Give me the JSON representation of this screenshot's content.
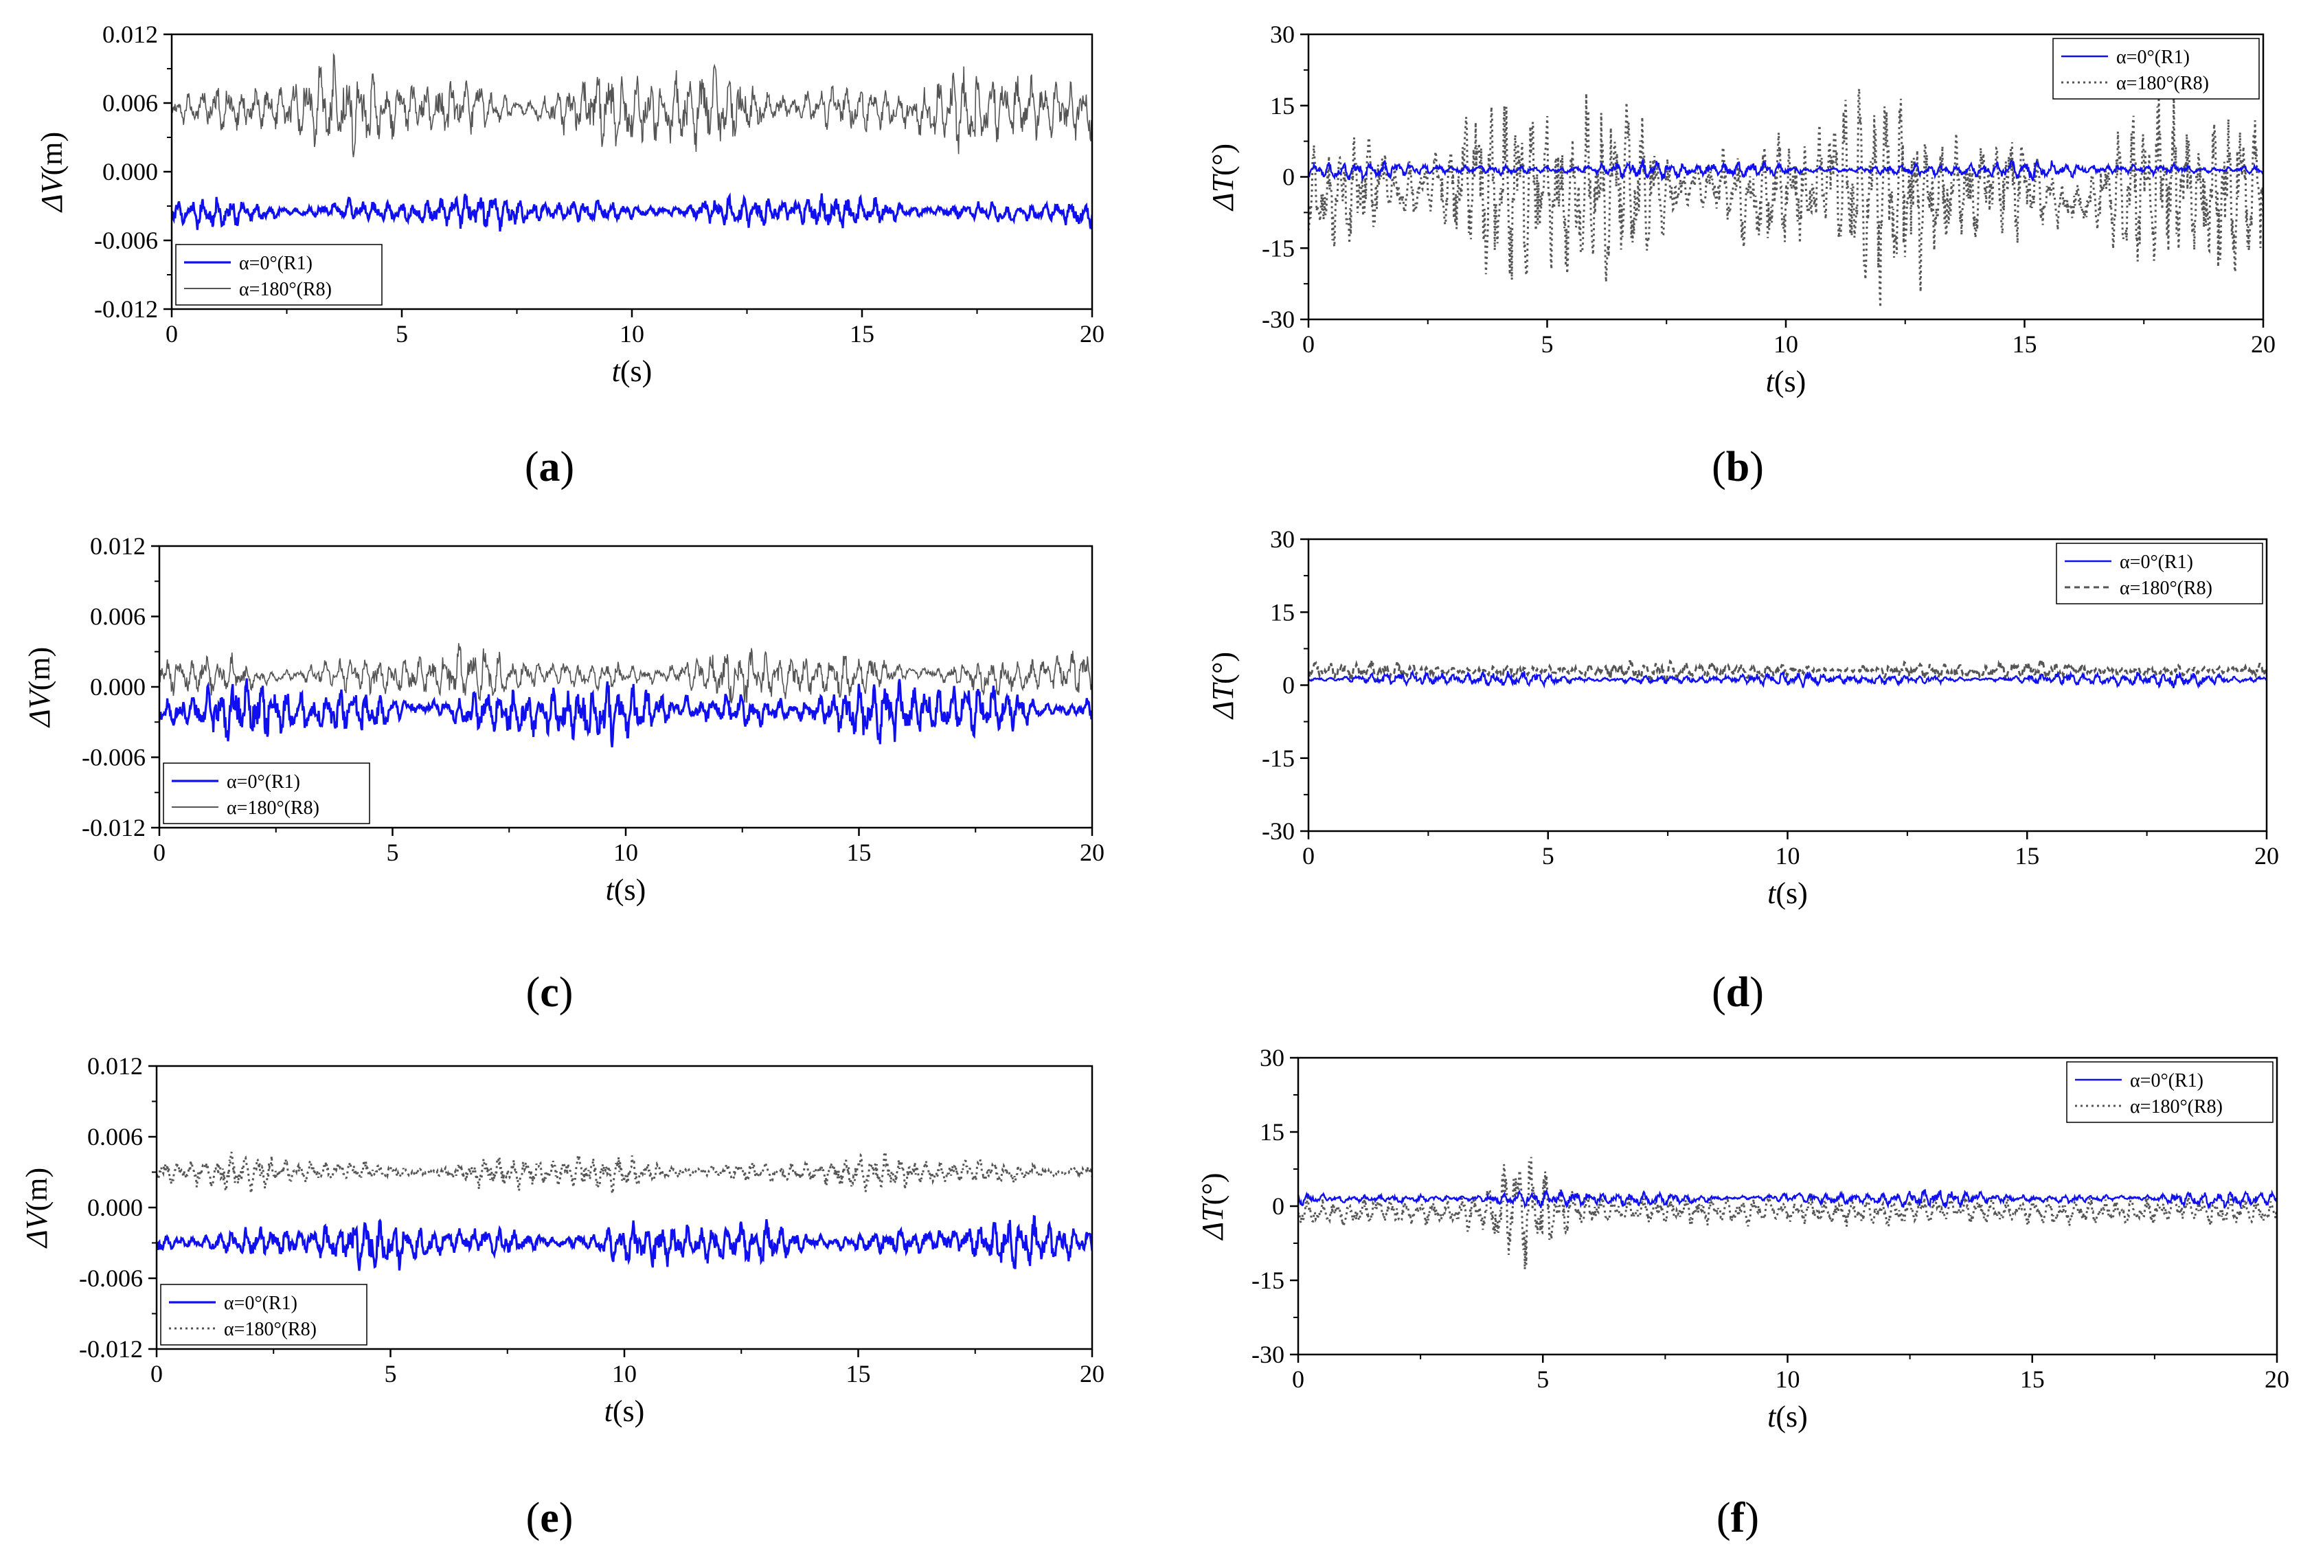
{
  "colors": {
    "blue": "#1010ee",
    "gray": "#555555"
  },
  "chart_data": [
    {
      "type": "line",
      "panel_label": "a",
      "quantity": "ΔV",
      "unit": "(m)",
      "xlabel_var": "t",
      "xlabel_unit": "(s)",
      "xlim": [
        0,
        20
      ],
      "ylim": [
        -0.012,
        0.012
      ],
      "xticks": [
        "0",
        "5",
        "10",
        "15",
        "20"
      ],
      "yticks": [
        "0.012",
        "0.006",
        "0.000",
        "-0.006",
        "-0.012"
      ],
      "legend_position": "bottom-left",
      "series": [
        {
          "name": "α=0°(R1)",
          "style": "blue-solid-bold",
          "mean": -0.0035,
          "amplitude": 0.0012,
          "note": "oscillating around -0.0035 m"
        },
        {
          "name": "α=180°(R8)",
          "style": "gray-thin",
          "mean": 0.0055,
          "amplitude": 0.003,
          "note": "oscillating around 0.0055 m"
        }
      ]
    },
    {
      "type": "line",
      "panel_label": "b",
      "quantity": "ΔT",
      "unit": "(°)",
      "xlabel_var": "t",
      "xlabel_unit": "(s)",
      "xlim": [
        0,
        20
      ],
      "ylim": [
        -30,
        30
      ],
      "xticks": [
        "0",
        "5",
        "10",
        "15",
        "20"
      ],
      "yticks": [
        "30",
        "15",
        "0",
        "-15",
        "-30"
      ],
      "legend_position": "top-right",
      "series": [
        {
          "name": "α=0°(R1)",
          "style": "blue-solid",
          "mean": 1.5,
          "amplitude": 1.5
        },
        {
          "name": "α=180°(R8)",
          "style": "gray-dotted",
          "mean": -3,
          "amplitude": 16
        }
      ]
    },
    {
      "type": "line",
      "panel_label": "c",
      "quantity": "ΔV",
      "unit": "(m)",
      "xlabel_var": "t",
      "xlabel_unit": "(s)",
      "xlim": [
        0,
        20
      ],
      "ylim": [
        -0.012,
        0.012
      ],
      "xticks": [
        "0",
        "5",
        "10",
        "15",
        "20"
      ],
      "yticks": [
        "0.012",
        "0.006",
        "0.000",
        "-0.006",
        "-0.012"
      ],
      "legend_position": "bottom-left",
      "series": [
        {
          "name": "α=0°(R1)",
          "style": "blue-solid-bold",
          "mean": -0.002,
          "amplitude": 0.002
        },
        {
          "name": "α=180°(R8)",
          "style": "gray-thin",
          "mean": 0.001,
          "amplitude": 0.0018
        }
      ]
    },
    {
      "type": "line",
      "panel_label": "d",
      "quantity": "ΔT",
      "unit": "(°)",
      "xlabel_var": "t",
      "xlabel_unit": "(s)",
      "xlim": [
        0,
        20
      ],
      "ylim": [
        -30,
        30
      ],
      "xticks": [
        "0",
        "5",
        "10",
        "15",
        "20"
      ],
      "yticks": [
        "30",
        "15",
        "0",
        "-15",
        "-30"
      ],
      "legend_position": "top-right",
      "series": [
        {
          "name": "α=0°(R1)",
          "style": "blue-solid",
          "mean": 1.2,
          "amplitude": 1.2
        },
        {
          "name": "α=180°(R8)",
          "style": "gray-dashed",
          "mean": 3,
          "amplitude": 1.6
        }
      ]
    },
    {
      "type": "line",
      "panel_label": "e",
      "quantity": "ΔV",
      "unit": "(m)",
      "xlabel_var": "t",
      "xlabel_unit": "(s)",
      "xlim": [
        0,
        20
      ],
      "ylim": [
        -0.012,
        0.012
      ],
      "xticks": [
        "0",
        "5",
        "10",
        "15",
        "20"
      ],
      "yticks": [
        "0.012",
        "0.006",
        "0.000",
        "-0.006",
        "-0.012"
      ],
      "legend_position": "bottom-left",
      "series": [
        {
          "name": "α=0°(R1)",
          "style": "blue-solid-bold",
          "mean": -0.003,
          "amplitude": 0.0016
        },
        {
          "name": "α=180°(R8)",
          "style": "gray-dotted",
          "mean": 0.003,
          "amplitude": 0.0012
        }
      ]
    },
    {
      "type": "line",
      "panel_label": "f",
      "quantity": "ΔT",
      "unit": "(°)",
      "xlabel_var": "t",
      "xlabel_unit": "(s)",
      "xlim": [
        0,
        20
      ],
      "ylim": [
        -30,
        30
      ],
      "xticks": [
        "0",
        "5",
        "10",
        "15",
        "20"
      ],
      "yticks": [
        "30",
        "15",
        "0",
        "-15",
        "-30"
      ],
      "legend_position": "top-right",
      "series": [
        {
          "name": "α=0°(R1)",
          "style": "blue-solid",
          "mean": 1.5,
          "amplitude": 1.3
        },
        {
          "name": "α=180°(R8)",
          "style": "gray-dotted",
          "mean": -1,
          "amplitude": 2.5,
          "note": "burst near t=4-5 s reaching about +8 / -12"
        }
      ]
    }
  ]
}
